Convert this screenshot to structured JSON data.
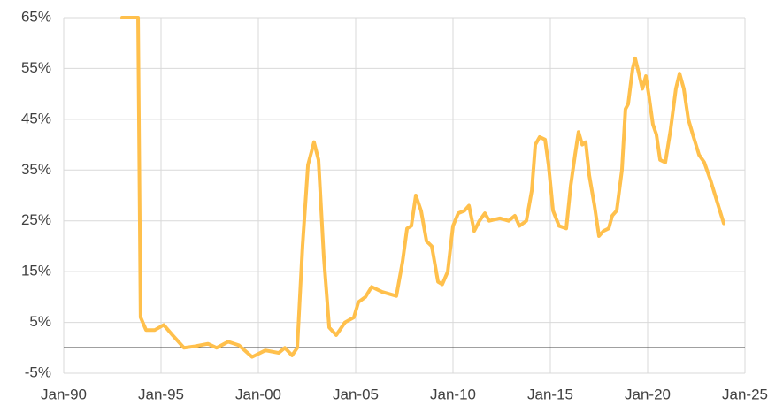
{
  "chart_data": {
    "type": "line",
    "x": [
      1993.0,
      1993.82,
      1993.95,
      1994.23,
      1994.68,
      1995.14,
      1995.59,
      1996.18,
      1996.73,
      1997.41,
      1997.86,
      1998.45,
      1999.0,
      1999.68,
      2000.36,
      2001.05,
      2001.36,
      2001.73,
      2002.0,
      2002.27,
      2002.55,
      2002.86,
      2003.09,
      2003.36,
      2003.64,
      2004.0,
      2004.45,
      2004.91,
      2005.14,
      2005.5,
      2005.82,
      2006.36,
      2007.09,
      2007.41,
      2007.64,
      2007.86,
      2008.09,
      2008.36,
      2008.64,
      2008.91,
      2009.23,
      2009.45,
      2009.73,
      2010.0,
      2010.27,
      2010.59,
      2010.82,
      2011.09,
      2011.36,
      2011.64,
      2011.86,
      2012.41,
      2012.86,
      2013.18,
      2013.41,
      2013.77,
      2014.05,
      2014.23,
      2014.45,
      2014.73,
      2014.91,
      2015.14,
      2015.45,
      2015.82,
      2016.05,
      2016.27,
      2016.45,
      2016.64,
      2016.82,
      2017.0,
      2017.27,
      2017.5,
      2017.73,
      2018.0,
      2018.18,
      2018.41,
      2018.68,
      2018.86,
      2019.0,
      2019.23,
      2019.36,
      2019.55,
      2019.73,
      2019.91,
      2020.05,
      2020.27,
      2020.45,
      2020.64,
      2020.91,
      2021.18,
      2021.45,
      2021.64,
      2021.86,
      2022.09,
      2022.32,
      2022.64,
      2022.91,
      2023.23,
      2023.55,
      2023.91
    ],
    "values": [
      65,
      65,
      6,
      3.5,
      3.5,
      4.5,
      2.5,
      0,
      0.3,
      0.8,
      0,
      1.2,
      0.5,
      -1.8,
      -0.5,
      -1,
      0,
      -1.5,
      0,
      20,
      36,
      40.5,
      37,
      18,
      4,
      2.5,
      5,
      6,
      9,
      10,
      12,
      11,
      10.2,
      17,
      23.5,
      24,
      30,
      27,
      21,
      20,
      13,
      12.5,
      15,
      24,
      26.5,
      27,
      28,
      23,
      25,
      26.5,
      25,
      25.5,
      25,
      26,
      24,
      25,
      31,
      40,
      41.5,
      41,
      36,
      27,
      24,
      23.5,
      32,
      38,
      42.5,
      40,
      40.5,
      34,
      28,
      22,
      23,
      23.5,
      26,
      27,
      35,
      47,
      48,
      55,
      57,
      54,
      51,
      53.5,
      50,
      44,
      42,
      37,
      36.5,
      43,
      51,
      54,
      51,
      45,
      42,
      38,
      36.5,
      33,
      29,
      24.5
    ],
    "color": "#ffc04c",
    "xlim": [
      1990,
      2025
    ],
    "xticks": [
      {
        "value": 1990,
        "label": "Jan-90"
      },
      {
        "value": 1995,
        "label": "Jan-95"
      },
      {
        "value": 2000,
        "label": "Jan-00"
      },
      {
        "value": 2005,
        "label": "Jan-05"
      },
      {
        "value": 2010,
        "label": "Jan-10"
      },
      {
        "value": 2015,
        "label": "Jan-15"
      },
      {
        "value": 2020,
        "label": "Jan-20"
      },
      {
        "value": 2025,
        "label": "Jan-25"
      }
    ],
    "ylim": [
      -5,
      65
    ],
    "yticks": [
      {
        "value": -5,
        "label": "-5%"
      },
      {
        "value": 5,
        "label": "5%"
      },
      {
        "value": 15,
        "label": "15%"
      },
      {
        "value": 25,
        "label": "25%"
      },
      {
        "value": 35,
        "label": "35%"
      },
      {
        "value": 45,
        "label": "45%"
      },
      {
        "value": 55,
        "label": "55%"
      },
      {
        "value": 65,
        "label": "65%"
      }
    ],
    "grid": true
  }
}
